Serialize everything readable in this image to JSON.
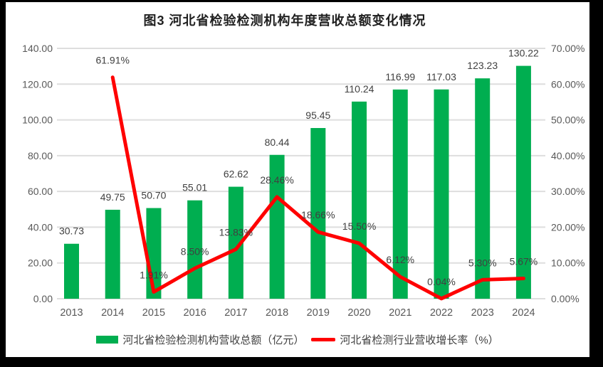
{
  "figure": {
    "title": "图3 河北省检验检测机构年度营收总额变化情况"
  },
  "colors": {
    "bar_green": "#00AE50",
    "line_red": "#FF0000",
    "gridline": "#DEDEDE",
    "axis_text": "#595959",
    "data_label": "#404040",
    "frame": "#000000",
    "background": "#FFFFFF"
  },
  "chart_data": {
    "type": "bar",
    "combo": "bar+line",
    "title": "图3 河北省检验检测机构年度营收总额变化情况",
    "categories": [
      "2013",
      "2014",
      "2015",
      "2016",
      "2017",
      "2018",
      "2019",
      "2020",
      "2021",
      "2022",
      "2023",
      "2024"
    ],
    "series": [
      {
        "name": "河北省检验检测机构营收总额（亿元）",
        "type": "bar",
        "axis": "left",
        "color": "#00AE50",
        "values": [
          30.73,
          49.75,
          50.7,
          55.01,
          62.62,
          80.44,
          95.45,
          110.24,
          116.99,
          117.03,
          123.23,
          130.22
        ],
        "labels": [
          "30.73",
          "49.75",
          "50.70",
          "55.01",
          "62.62",
          "80.44",
          "95.45",
          "110.24",
          "116.99",
          "117.03",
          "123.23",
          "130.22"
        ]
      },
      {
        "name": "河北省检测行业营收增长率（%）",
        "type": "line",
        "axis": "right",
        "color": "#FF0000",
        "values": [
          null,
          61.91,
          1.91,
          8.5,
          13.83,
          28.46,
          18.66,
          15.5,
          6.12,
          0.04,
          5.3,
          5.67
        ],
        "labels": [
          "",
          "61.91%",
          "1.91%",
          "8.50%",
          "13.83%",
          "28.46%",
          "18.66%",
          "15.50%",
          "6.12%",
          "0.04%",
          "5.30%",
          "5.67%"
        ]
      }
    ],
    "left_axis": {
      "min": 0,
      "max": 140,
      "step": 20,
      "tick_labels": [
        "140.00",
        "120.00",
        "100.00",
        "80.00",
        "60.00",
        "40.00",
        "20.00",
        "0.00"
      ]
    },
    "right_axis": {
      "min": 0,
      "max": 70,
      "step": 10,
      "tick_labels": [
        "70.00%",
        "60.00%",
        "50.00%",
        "40.00%",
        "30.00%",
        "20.00%",
        "10.00%",
        "0.00%"
      ]
    },
    "grid": true,
    "legend_position": "bottom"
  }
}
